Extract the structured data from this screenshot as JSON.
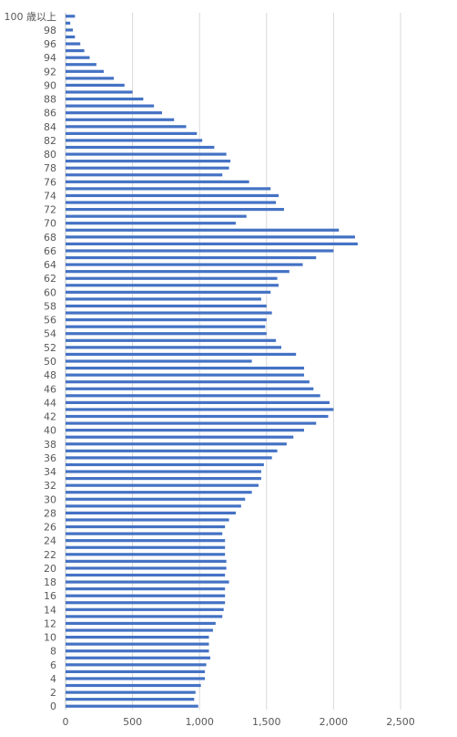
{
  "chart_data": {
    "type": "bar",
    "orientation": "horizontal",
    "title": "",
    "xlabel": "",
    "ylabel": "",
    "xlim": [
      0,
      2500
    ],
    "x_ticks": [
      "0",
      "500",
      "1,000",
      "1,500",
      "2,000",
      "2,500"
    ],
    "y_tick_labels": [
      "100 歳以上",
      "98",
      "96",
      "94",
      "92",
      "90",
      "88",
      "86",
      "84",
      "82",
      "80",
      "78",
      "76",
      "74",
      "72",
      "70",
      "68",
      "66",
      "64",
      "62",
      "60",
      "58",
      "56",
      "54",
      "52",
      "50",
      "48",
      "46",
      "44",
      "42",
      "40",
      "38",
      "36",
      "34",
      "32",
      "30",
      "28",
      "26",
      "24",
      "22",
      "20",
      "18",
      "16",
      "14",
      "12",
      "10",
      "8",
      "6",
      "4",
      "2",
      "0"
    ],
    "grid": "vertical",
    "bar_color": "#4472c4",
    "categories": [
      "100 歳以上",
      "99",
      "98",
      "97",
      "96",
      "95",
      "94",
      "93",
      "92",
      "91",
      "90",
      "89",
      "88",
      "87",
      "86",
      "85",
      "84",
      "83",
      "82",
      "81",
      "80",
      "79",
      "78",
      "77",
      "76",
      "75",
      "74",
      "73",
      "72",
      "71",
      "70",
      "69",
      "68",
      "67",
      "66",
      "65",
      "64",
      "63",
      "62",
      "61",
      "60",
      "59",
      "58",
      "57",
      "56",
      "55",
      "54",
      "53",
      "52",
      "51",
      "50",
      "49",
      "48",
      "47",
      "46",
      "45",
      "44",
      "43",
      "42",
      "41",
      "40",
      "39",
      "38",
      "37",
      "36",
      "35",
      "34",
      "33",
      "32",
      "31",
      "30",
      "29",
      "28",
      "27",
      "26",
      "25",
      "24",
      "23",
      "22",
      "21",
      "20",
      "19",
      "18",
      "17",
      "16",
      "15",
      "14",
      "13",
      "12",
      "11",
      "10",
      "9",
      "8",
      "7",
      "6",
      "5",
      "4",
      "3",
      "2",
      "1",
      "0"
    ],
    "values": [
      70,
      35,
      55,
      70,
      110,
      140,
      180,
      230,
      285,
      360,
      440,
      500,
      580,
      660,
      720,
      810,
      900,
      980,
      1020,
      1110,
      1200,
      1230,
      1220,
      1170,
      1370,
      1530,
      1590,
      1570,
      1630,
      1350,
      1270,
      2040,
      2160,
      2180,
      2000,
      1870,
      1770,
      1670,
      1580,
      1590,
      1530,
      1460,
      1500,
      1540,
      1500,
      1490,
      1500,
      1570,
      1610,
      1720,
      1390,
      1780,
      1780,
      1820,
      1850,
      1900,
      1970,
      2000,
      1960,
      1870,
      1780,
      1700,
      1650,
      1580,
      1540,
      1480,
      1460,
      1460,
      1440,
      1390,
      1340,
      1310,
      1270,
      1220,
      1190,
      1170,
      1190,
      1190,
      1190,
      1200,
      1200,
      1190,
      1220,
      1190,
      1190,
      1190,
      1180,
      1170,
      1120,
      1100,
      1070,
      1070,
      1070,
      1080,
      1050,
      1040,
      1040,
      1010,
      970,
      960,
      990
    ]
  }
}
